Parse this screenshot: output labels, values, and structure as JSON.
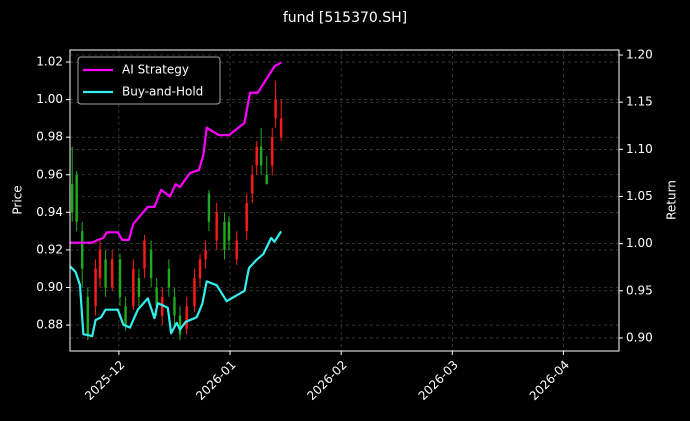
{
  "chart_data": {
    "type": "candlestick_lines",
    "title": "fund [515370.SH]",
    "ylabel": "Price",
    "y2label": "Return",
    "xlim": [
      -0.44,
      4.5
    ],
    "xticks": [
      {
        "value": 0,
        "label": "2025-12"
      },
      {
        "value": 1,
        "label": "2026-01"
      },
      {
        "value": 2,
        "label": "2026-02"
      },
      {
        "value": 3,
        "label": "2026-03"
      },
      {
        "value": 4,
        "label": "2026-04"
      }
    ],
    "ylim": [
      0.8662,
      1.0264
    ],
    "yticks": [
      0.88,
      {
        "value": 0.9,
        "label": "0.90"
      },
      0.92,
      0.94,
      0.96,
      0.98,
      {
        "value": 1.0,
        "label": "1.00"
      },
      1.02
    ],
    "y2lim": [
      0.8862,
      1.2053
    ],
    "y2ticks": [
      {
        "value": 0.9,
        "label": "0.90"
      },
      0.95,
      {
        "value": 1.0,
        "label": "1.00"
      },
      1.05,
      {
        "value": 1.1,
        "label": "1.10"
      },
      1.15,
      {
        "value": 1.2,
        "label": "1.20"
      }
    ],
    "grid": true,
    "legend": "upper left",
    "candles": {
      "up_color": "#ff1a1a",
      "down_color": "#1faa1f",
      "x": [
        -0.42,
        -0.38,
        -0.33,
        -0.28,
        -0.21,
        -0.17,
        -0.12,
        -0.06,
        0.01,
        0.06,
        0.13,
        0.18,
        0.23,
        0.29,
        0.34,
        0.39,
        0.45,
        0.5,
        0.55,
        0.61,
        0.68,
        0.73,
        0.78,
        0.81,
        0.88,
        0.95,
        0.99,
        1.06,
        1.15,
        1.2,
        1.24,
        1.28,
        1.33,
        1.38,
        1.41,
        1.46
      ],
      "open": [
        0.955,
        0.96,
        0.93,
        0.895,
        0.89,
        0.905,
        0.915,
        0.9,
        0.915,
        0.89,
        0.89,
        0.905,
        0.91,
        0.92,
        0.9,
        0.885,
        0.91,
        0.895,
        0.885,
        0.878,
        0.89,
        0.905,
        0.915,
        0.95,
        0.925,
        0.935,
        0.935,
        0.915,
        0.93,
        0.95,
        0.965,
        0.975,
        0.96,
        0.965,
        0.99,
        0.98
      ],
      "close": [
        0.94,
        0.935,
        0.91,
        0.875,
        0.91,
        0.92,
        0.9,
        0.915,
        0.895,
        0.88,
        0.91,
        0.895,
        0.925,
        0.905,
        0.89,
        0.895,
        0.9,
        0.885,
        0.875,
        0.89,
        0.905,
        0.915,
        0.92,
        0.935,
        0.94,
        0.92,
        0.925,
        0.925,
        0.945,
        0.96,
        0.975,
        0.965,
        0.955,
        0.98,
        1.0,
        0.99
      ],
      "high": [
        0.975,
        0.962,
        0.935,
        0.9,
        0.915,
        0.925,
        0.92,
        0.92,
        0.918,
        0.895,
        0.915,
        0.91,
        0.928,
        0.925,
        0.905,
        0.9,
        0.915,
        0.9,
        0.89,
        0.895,
        0.91,
        0.918,
        0.925,
        0.952,
        0.945,
        0.94,
        0.938,
        0.93,
        0.95,
        0.965,
        0.978,
        0.985,
        0.97,
        0.985,
        1.01,
        1.0
      ],
      "low": [
        0.935,
        0.93,
        0.9,
        0.872,
        0.885,
        0.9,
        0.895,
        0.898,
        0.89,
        0.877,
        0.888,
        0.89,
        0.905,
        0.9,
        0.885,
        0.88,
        0.895,
        0.88,
        0.872,
        0.875,
        0.887,
        0.9,
        0.91,
        0.93,
        0.92,
        0.915,
        0.92,
        0.912,
        0.925,
        0.945,
        0.96,
        0.96,
        0.955,
        0.96,
        0.985,
        0.978
      ]
    },
    "series": [
      {
        "name": "AI Strategy",
        "color": "#ff00ff",
        "axis": "y2",
        "x": [
          -0.44,
          -0.24,
          -0.19,
          -0.14,
          -0.11,
          -0.01,
          0.03,
          0.09,
          0.13,
          0.26,
          0.32,
          0.38,
          0.46,
          0.51,
          0.55,
          0.64,
          0.72,
          0.76,
          0.79,
          0.9,
          0.99,
          1.13,
          1.18,
          1.25,
          1.4,
          1.46
        ],
        "values": [
          1.001,
          1.001,
          1.004,
          1.006,
          1.012,
          1.012,
          1.004,
          1.004,
          1.021,
          1.039,
          1.039,
          1.057,
          1.05,
          1.063,
          1.06,
          1.075,
          1.078,
          1.094,
          1.123,
          1.115,
          1.115,
          1.128,
          1.16,
          1.16,
          1.188,
          1.192
        ]
      },
      {
        "name": "Buy-and-Hold",
        "color": "#33f0f0",
        "axis": "y2",
        "x": [
          -0.44,
          -0.39,
          -0.35,
          -0.32,
          -0.24,
          -0.21,
          -0.16,
          -0.12,
          -0.01,
          0.04,
          0.1,
          0.17,
          0.26,
          0.32,
          0.35,
          0.44,
          0.47,
          0.52,
          0.55,
          0.6,
          0.7,
          0.75,
          0.79,
          0.88,
          0.97,
          1.13,
          1.17,
          1.24,
          1.3,
          1.37,
          1.4,
          1.46
        ],
        "values": [
          0.976,
          0.97,
          0.956,
          0.904,
          0.902,
          0.919,
          0.922,
          0.93,
          0.93,
          0.914,
          0.911,
          0.93,
          0.942,
          0.921,
          0.937,
          0.932,
          0.905,
          0.916,
          0.909,
          0.917,
          0.922,
          0.936,
          0.96,
          0.956,
          0.939,
          0.95,
          0.974,
          0.983,
          0.989,
          1.006,
          1.002,
          1.013
        ]
      }
    ]
  }
}
